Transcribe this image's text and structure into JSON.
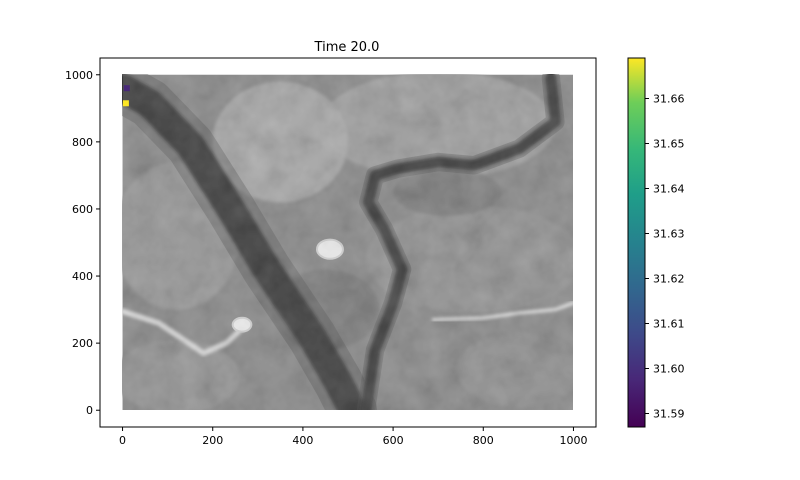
{
  "chart_data": {
    "type": "heatmap",
    "title": "Time 20.0",
    "xlabel": "",
    "ylabel": "",
    "xlim": [
      -50,
      1050
    ],
    "ylim": [
      -50,
      1050
    ],
    "data_extent": {
      "x": [
        0,
        1000
      ],
      "y": [
        0,
        1000
      ]
    },
    "x_ticks": [
      0,
      200,
      400,
      600,
      800,
      1000
    ],
    "y_ticks": [
      0,
      200,
      400,
      600,
      800,
      1000
    ],
    "grid": false,
    "terrain_base_colormap": "gray",
    "colorbar": {
      "colormap": "viridis",
      "range": [
        31.587,
        31.669
      ],
      "ticks": [
        31.59,
        31.6,
        31.61,
        31.62,
        31.63,
        31.64,
        31.65,
        31.66
      ],
      "tick_labels": [
        "31.59",
        "31.60",
        "31.61",
        "31.62",
        "31.63",
        "31.64",
        "31.65",
        "31.66"
      ],
      "placement": "right"
    },
    "highlighted_cells": [
      {
        "x": 5,
        "y": 960,
        "value": 31.594
      },
      {
        "x": 3,
        "y": 915,
        "value": 31.668
      }
    ],
    "features": [
      {
        "name": "main-channel",
        "kind": "dark-band",
        "path": [
          [
            0,
            960
          ],
          [
            60,
            915
          ],
          [
            150,
            790
          ],
          [
            240,
            600
          ],
          [
            320,
            420
          ],
          [
            420,
            220
          ],
          [
            480,
            80
          ],
          [
            510,
            0
          ]
        ],
        "half_width": 32
      },
      {
        "name": "branch-channel",
        "kind": "dark-band",
        "path": [
          [
            540,
            0
          ],
          [
            560,
            180
          ],
          [
            600,
            320
          ],
          [
            620,
            420
          ],
          [
            580,
            540
          ],
          [
            545,
            620
          ],
          [
            560,
            700
          ],
          [
            610,
            720
          ],
          [
            700,
            740
          ],
          [
            780,
            730
          ],
          [
            880,
            780
          ],
          [
            960,
            860
          ],
          [
            950,
            990
          ]
        ],
        "half_width": 12
      },
      {
        "name": "road-left",
        "kind": "bright-line",
        "path": [
          [
            0,
            295
          ],
          [
            80,
            260
          ],
          [
            180,
            170
          ],
          [
            230,
            200
          ],
          [
            270,
            250
          ]
        ],
        "half_width": 6
      },
      {
        "name": "road-right",
        "kind": "bright-line",
        "path": [
          [
            690,
            270
          ],
          [
            800,
            275
          ],
          [
            880,
            290
          ],
          [
            960,
            300
          ],
          [
            1000,
            320
          ]
        ],
        "half_width": 4
      },
      {
        "name": "bright-spot-center",
        "kind": "bright-spot",
        "center": [
          460,
          480
        ],
        "radius": 25
      },
      {
        "name": "bright-spot-left",
        "kind": "bright-spot",
        "center": [
          265,
          255
        ],
        "radius": 18
      }
    ]
  }
}
